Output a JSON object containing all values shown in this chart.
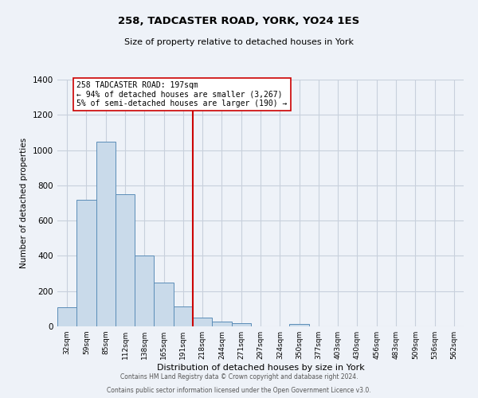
{
  "title": "258, TADCASTER ROAD, YORK, YO24 1ES",
  "subtitle": "Size of property relative to detached houses in York",
  "xlabel": "Distribution of detached houses by size in York",
  "ylabel": "Number of detached properties",
  "bar_labels": [
    "32sqm",
    "59sqm",
    "85sqm",
    "112sqm",
    "138sqm",
    "165sqm",
    "191sqm",
    "218sqm",
    "244sqm",
    "271sqm",
    "297sqm",
    "324sqm",
    "350sqm",
    "377sqm",
    "403sqm",
    "430sqm",
    "456sqm",
    "483sqm",
    "509sqm",
    "536sqm",
    "562sqm"
  ],
  "bar_values": [
    108,
    720,
    1050,
    748,
    400,
    248,
    112,
    50,
    28,
    20,
    0,
    0,
    15,
    0,
    0,
    0,
    0,
    0,
    0,
    0,
    0
  ],
  "bar_color": "#c9daea",
  "bar_edge_color": "#5b8db8",
  "ylim": [
    0,
    1400
  ],
  "yticks": [
    0,
    200,
    400,
    600,
    800,
    1000,
    1200,
    1400
  ],
  "vline_x": 6.5,
  "vline_color": "#cc0000",
  "annotation_title": "258 TADCASTER ROAD: 197sqm",
  "annotation_line1": "← 94% of detached houses are smaller (3,267)",
  "annotation_line2": "5% of semi-detached houses are larger (190) →",
  "annotation_box_color": "#ffffff",
  "annotation_box_edge": "#cc0000",
  "background_color": "#eef2f8",
  "grid_color": "#c8d0dc",
  "footer1": "Contains HM Land Registry data © Crown copyright and database right 2024.",
  "footer2": "Contains public sector information licensed under the Open Government Licence v3.0."
}
